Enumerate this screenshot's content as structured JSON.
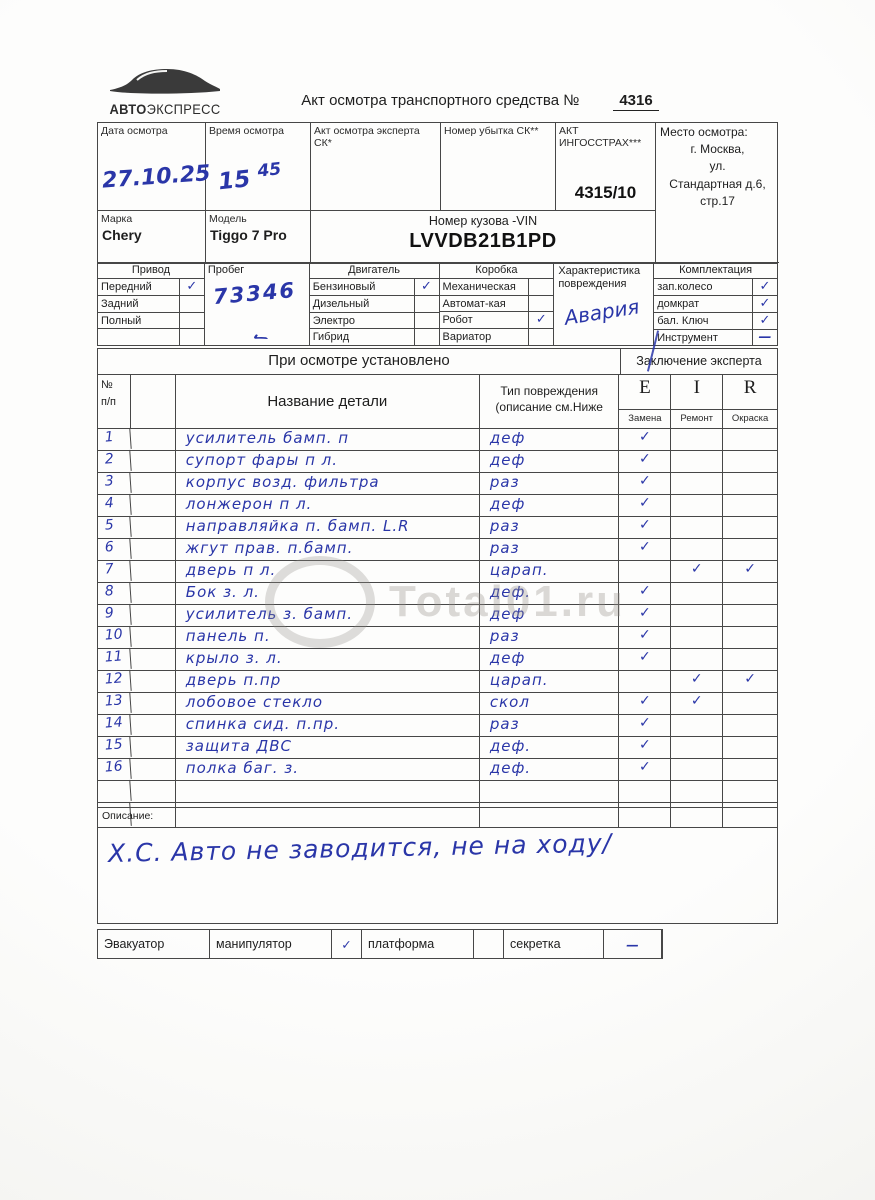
{
  "colors": {
    "ink_blue": "#2a36a8",
    "print_black": "#1e1e1e",
    "border_gray": "#474747",
    "paper": "#fdfdfc"
  },
  "logo": {
    "brand_bold": "АВТО",
    "brand_light": "ЭКСПРЕСС"
  },
  "header": {
    "title": "Акт осмотра транспортного средства №",
    "doc_number": "4316"
  },
  "top_table": {
    "date_header": "Дата осмотра",
    "date_value": "27.10.25",
    "time_header": "Время осмотра",
    "time_hours": "15",
    "time_minutes": "45",
    "act_expert_header": "Акт осмотра эксперта СК*",
    "act_expert_value": "",
    "loss_number_header": "Номер убытка СК**",
    "loss_number_value": "",
    "ingosstrah_header": "АКТ ИНГОССТРАХ***",
    "ingosstrah_value": "4315/10",
    "location_header": "Место осмотра:",
    "location_lines": [
      "г. Москва,",
      "ул.",
      "Стандартная д.6,",
      "стр.17"
    ]
  },
  "vehicle": {
    "brand_label": "Марка",
    "brand": "Chery",
    "model_label": "Модель",
    "model": "Tiggo 7 Pro",
    "vin_label": "Номер кузова -VIN",
    "vin": "LVVDB21B1PD"
  },
  "drive": {
    "title": "Привод",
    "rows": [
      [
        "Передний",
        "✓"
      ],
      [
        "Задний",
        ""
      ],
      [
        "Полный",
        ""
      ],
      [
        "",
        ""
      ]
    ]
  },
  "mileage": {
    "label": "Пробег",
    "value": "73346"
  },
  "engine": {
    "title": "Двигатель",
    "rows": [
      [
        "Бензиновый",
        "✓"
      ],
      [
        "Дизельный",
        ""
      ],
      [
        "Электро",
        ""
      ],
      [
        "Гибрид",
        ""
      ]
    ]
  },
  "gearbox": {
    "title": "Коробка",
    "rows": [
      [
        "Механическая",
        ""
      ],
      [
        "Автомат-кая",
        ""
      ],
      [
        "Робот",
        "✓"
      ],
      [
        "Вариатор",
        ""
      ]
    ]
  },
  "damage_nature": {
    "label_line1": "Характеристика",
    "label_line2": "повреждения",
    "value": "Авария"
  },
  "equipment": {
    "title": "Комплектация",
    "rows": [
      [
        "зап.колесо",
        "✓"
      ],
      [
        "домкрат",
        "✓"
      ],
      [
        "бал. Ключ",
        "✓"
      ],
      [
        "Инструмент",
        "—"
      ]
    ]
  },
  "inspection": {
    "section_title": "При осмотре установлено",
    "conclusion_title": "Заключение эксперта",
    "col_num_line1": "№",
    "col_num_line2": "п/п",
    "col_name": "Название детали",
    "col_damage_line1": "Тип повреждения",
    "col_damage_line2": "(описание см.Ниже",
    "eir": [
      {
        "letter": "E",
        "sub": "Замена"
      },
      {
        "letter": "I",
        "sub": "Ремонт"
      },
      {
        "letter": "R",
        "sub": "Окраска"
      }
    ],
    "rows": [
      [
        "1",
        "усилитель бамп. п",
        "деф",
        "✓",
        "",
        ""
      ],
      [
        "2",
        "супорт фары п л.",
        "деф",
        "✓",
        "",
        ""
      ],
      [
        "3",
        "корпус возд. фильтра",
        "раз",
        "✓",
        "",
        ""
      ],
      [
        "4",
        "лонжерон п л.",
        "деф",
        "✓",
        "",
        ""
      ],
      [
        "5",
        "направляйка п. бамп. L.R",
        "раз",
        "✓",
        "",
        ""
      ],
      [
        "6",
        "жгут прав. п.бамп.",
        "раз",
        "✓",
        "",
        ""
      ],
      [
        "7",
        "дверь п л.",
        "царап.",
        "",
        "✓",
        "✓"
      ],
      [
        "8",
        "Бок з. л.",
        "деф.",
        "✓",
        "",
        ""
      ],
      [
        "9",
        "усилитель з. бамп.",
        "деф",
        "✓",
        "",
        ""
      ],
      [
        "10",
        "панель п.",
        "раз",
        "✓",
        "",
        ""
      ],
      [
        "11",
        "крыло з. л.",
        "деф",
        "✓",
        "",
        ""
      ],
      [
        "12",
        "дверь п.пр",
        "царап.",
        "",
        "✓",
        "✓"
      ],
      [
        "13",
        "лобовое стекло",
        "скол",
        "✓",
        "✓",
        ""
      ],
      [
        "14",
        "спинка сид. п.пр.",
        "раз",
        "✓",
        "",
        ""
      ],
      [
        "15",
        "защита ДВС",
        "деф.",
        "✓",
        "",
        ""
      ],
      [
        "16",
        "полка баг. з.",
        "деф.",
        "✓",
        "",
        ""
      ],
      [
        "",
        "",
        "",
        "",
        "",
        ""
      ],
      [
        "",
        "",
        "",
        "",
        "",
        ""
      ]
    ]
  },
  "description": {
    "label": "Описание:",
    "text": "Х.С. Авто не заводится, не на ходу/"
  },
  "transport": {
    "cells": [
      {
        "label": "Эвакуатор",
        "mark": null
      },
      {
        "label": "манипулятор",
        "mark": "✓"
      },
      {
        "label": "платформа",
        "mark": ""
      },
      {
        "label": "секретка",
        "mark": "—"
      }
    ]
  },
  "watermark": {
    "text": "Total01.ru"
  }
}
